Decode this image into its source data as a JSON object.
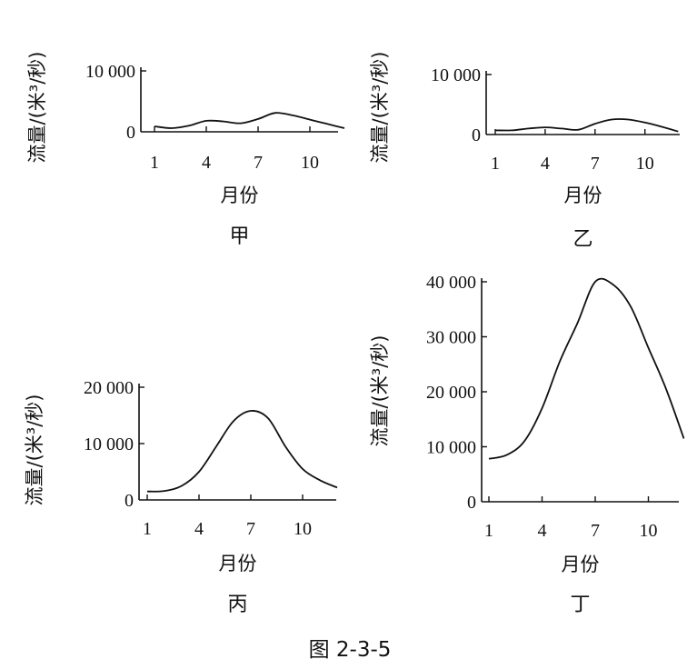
{
  "figure_caption": "图 2-3-5",
  "chart_data": [
    {
      "type": "line",
      "title": "甲",
      "xlabel": "月份",
      "ylabel": "流量/(米³/秒)",
      "x_ticks": [
        "1",
        "4",
        "7",
        "10"
      ],
      "y_ticks": [
        "0",
        "10 000"
      ],
      "xlim": [
        1,
        12
      ],
      "ylim": [
        0,
        10000
      ],
      "series": [
        {
          "x": [
            1,
            2,
            3,
            4,
            5,
            6,
            7,
            8,
            9,
            10,
            11,
            12
          ],
          "values": [
            900,
            600,
            1000,
            1800,
            1700,
            1400,
            2100,
            3100,
            2700,
            2000,
            1300,
            600
          ]
        }
      ]
    },
    {
      "type": "line",
      "title": "乙",
      "xlabel": "月份",
      "ylabel": "流量/(米³/秒)",
      "x_ticks": [
        "1",
        "4",
        "7",
        "10"
      ],
      "y_ticks": [
        "0",
        "10 000"
      ],
      "xlim": [
        1,
        12
      ],
      "ylim": [
        0,
        10000
      ],
      "series": [
        {
          "x": [
            1,
            2,
            3,
            4,
            5,
            6,
            7,
            8,
            9,
            10,
            11,
            12
          ],
          "values": [
            700,
            700,
            1000,
            1200,
            1000,
            800,
            1800,
            2500,
            2500,
            2000,
            1300,
            500
          ]
        }
      ]
    },
    {
      "type": "line",
      "title": "丙",
      "xlabel": "月份",
      "ylabel": "流量/(米³/秒)",
      "x_ticks": [
        "1",
        "4",
        "7",
        "10"
      ],
      "y_ticks": [
        "0",
        "10 000",
        "20 000"
      ],
      "xlim": [
        1,
        12
      ],
      "ylim": [
        0,
        20000
      ],
      "series": [
        {
          "x": [
            1,
            2,
            3,
            4,
            5,
            6,
            7,
            8,
            9,
            10,
            11,
            12
          ],
          "values": [
            1500,
            1600,
            2500,
            5000,
            9500,
            14000,
            15800,
            14500,
            9500,
            5500,
            3500,
            2200
          ]
        }
      ]
    },
    {
      "type": "line",
      "title": "丁",
      "xlabel": "月份",
      "ylabel": "流量/(米³/秒)",
      "x_ticks": [
        "1",
        "4",
        "7",
        "10"
      ],
      "y_ticks": [
        "0",
        "10 000",
        "20 000",
        "30 000",
        "40 000"
      ],
      "xlim": [
        1,
        12
      ],
      "ylim": [
        0,
        40000
      ],
      "series": [
        {
          "x": [
            1,
            2,
            3,
            4,
            5,
            6,
            7,
            8,
            9,
            10,
            11,
            12
          ],
          "values": [
            7800,
            8500,
            11000,
            17000,
            25500,
            32500,
            40000,
            39500,
            35500,
            28000,
            20500,
            11500
          ]
        }
      ]
    }
  ]
}
